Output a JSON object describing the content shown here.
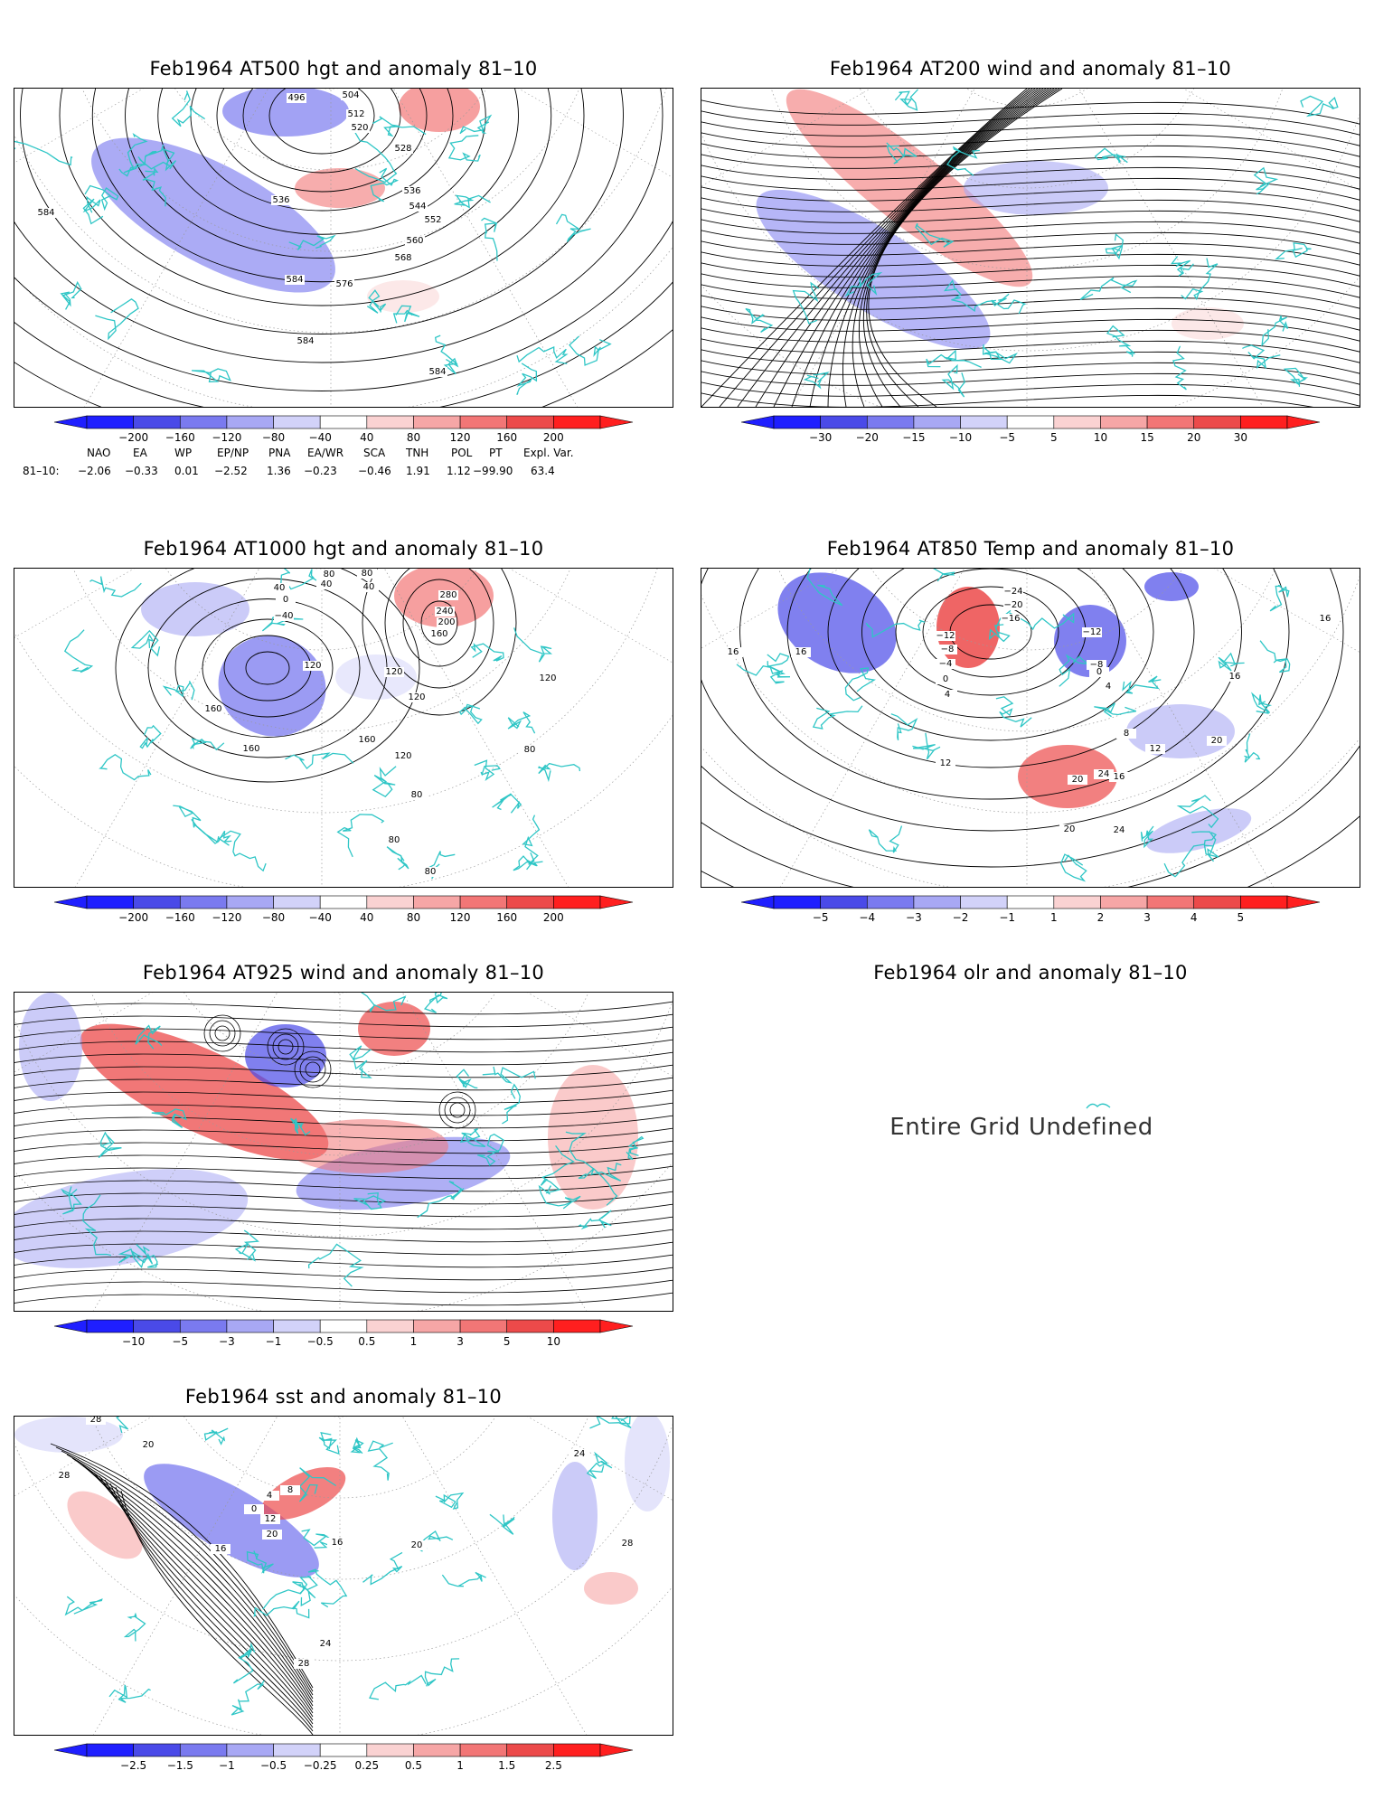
{
  "panels": [
    {
      "id": "p1",
      "title": "Feb1964 AT500 hgt and anomaly 81–10",
      "colorbar": [
        "−200",
        "−160",
        "−120",
        "−80",
        "−40",
        "40",
        "80",
        "120",
        "160",
        "200"
      ],
      "contour_labels": [
        "496",
        "504",
        "512",
        "520",
        "528",
        "536",
        "544",
        "552",
        "560",
        "568",
        "576",
        "584",
        "584",
        "584",
        "536",
        "584"
      ]
    },
    {
      "id": "p2",
      "title": "Feb1964 AT200 wind and anomaly 81–10",
      "colorbar": [
        "−30",
        "−20",
        "−15",
        "−10",
        "−5",
        "5",
        "10",
        "15",
        "20",
        "30"
      ],
      "contour_labels": []
    },
    {
      "id": "p3",
      "title": "Feb1964 AT1000 hgt and anomaly 81–10",
      "colorbar": [
        "−200",
        "−160",
        "−120",
        "−80",
        "−40",
        "40",
        "80",
        "120",
        "160",
        "200"
      ],
      "contour_labels": [
        "80",
        "40",
        "40",
        "0",
        "−40",
        "40",
        "80",
        "120",
        "280",
        "240",
        "200",
        "160",
        "120",
        "120",
        "120",
        "160",
        "160",
        "160",
        "80",
        "120",
        "80",
        "80",
        "80"
      ]
    },
    {
      "id": "p4",
      "title": "Feb1964 AT850 Temp and anomaly 81–10",
      "colorbar": [
        "−5",
        "−4",
        "−3",
        "−2",
        "−1",
        "1",
        "2",
        "3",
        "4",
        "5"
      ],
      "contour_labels": [
        "−24",
        "−20",
        "−16",
        "−12",
        "−8",
        "−4",
        "0",
        "4",
        "−12",
        "−8",
        "4",
        "0",
        "16",
        "16",
        "16",
        "16",
        "8",
        "12",
        "20",
        "12",
        "16",
        "20",
        "24",
        "20",
        "24"
      ]
    },
    {
      "id": "p5",
      "title": "Feb1964 AT925 wind and anomaly 81–10",
      "colorbar": [
        "−10",
        "−5",
        "−3",
        "−1",
        "−0.5",
        "0.5",
        "1",
        "3",
        "5",
        "10"
      ],
      "contour_labels": []
    },
    {
      "id": "p6",
      "title": "Feb1964 olr and anomaly 81–10",
      "undefined_text": "Entire Grid Undefined"
    },
    {
      "id": "p7",
      "title": "Feb1964 sst and anomaly 81–10",
      "colorbar": [
        "−2.5",
        "−1.5",
        "−1",
        "−0.5",
        "−0.25",
        "0.25",
        "0.5",
        "1",
        "1.5",
        "2.5"
      ],
      "contour_labels": [
        "28",
        "20",
        "28",
        "0",
        "4",
        "8",
        "12",
        "20",
        "16",
        "16",
        "20",
        "24",
        "28",
        "24",
        "28"
      ]
    }
  ],
  "index_table": {
    "headers": [
      "NAO",
      "EA",
      "WP",
      "EP/NP",
      "PNA",
      "EA/WR",
      "SCA",
      "TNH",
      "POL",
      "PT",
      "Expl. Var."
    ],
    "row_label": "81–10:",
    "values": [
      "−2.06",
      "−0.33",
      "0.01",
      "−2.52",
      "1.36",
      "−0.23",
      "−0.46",
      "1.91",
      "1.12",
      "−99.90",
      "63.4"
    ]
  },
  "colors": {
    "coast": "#2fc6c6",
    "contour": "#000000",
    "cbar": [
      "#1f1fff",
      "#4a4ae8",
      "#7a7aef",
      "#a8a8f4",
      "#d2d2f9",
      "#ffffff",
      "#fad2d2",
      "#f6a6a6",
      "#f27676",
      "#ec4a4a",
      "#ff1f1f"
    ]
  }
}
